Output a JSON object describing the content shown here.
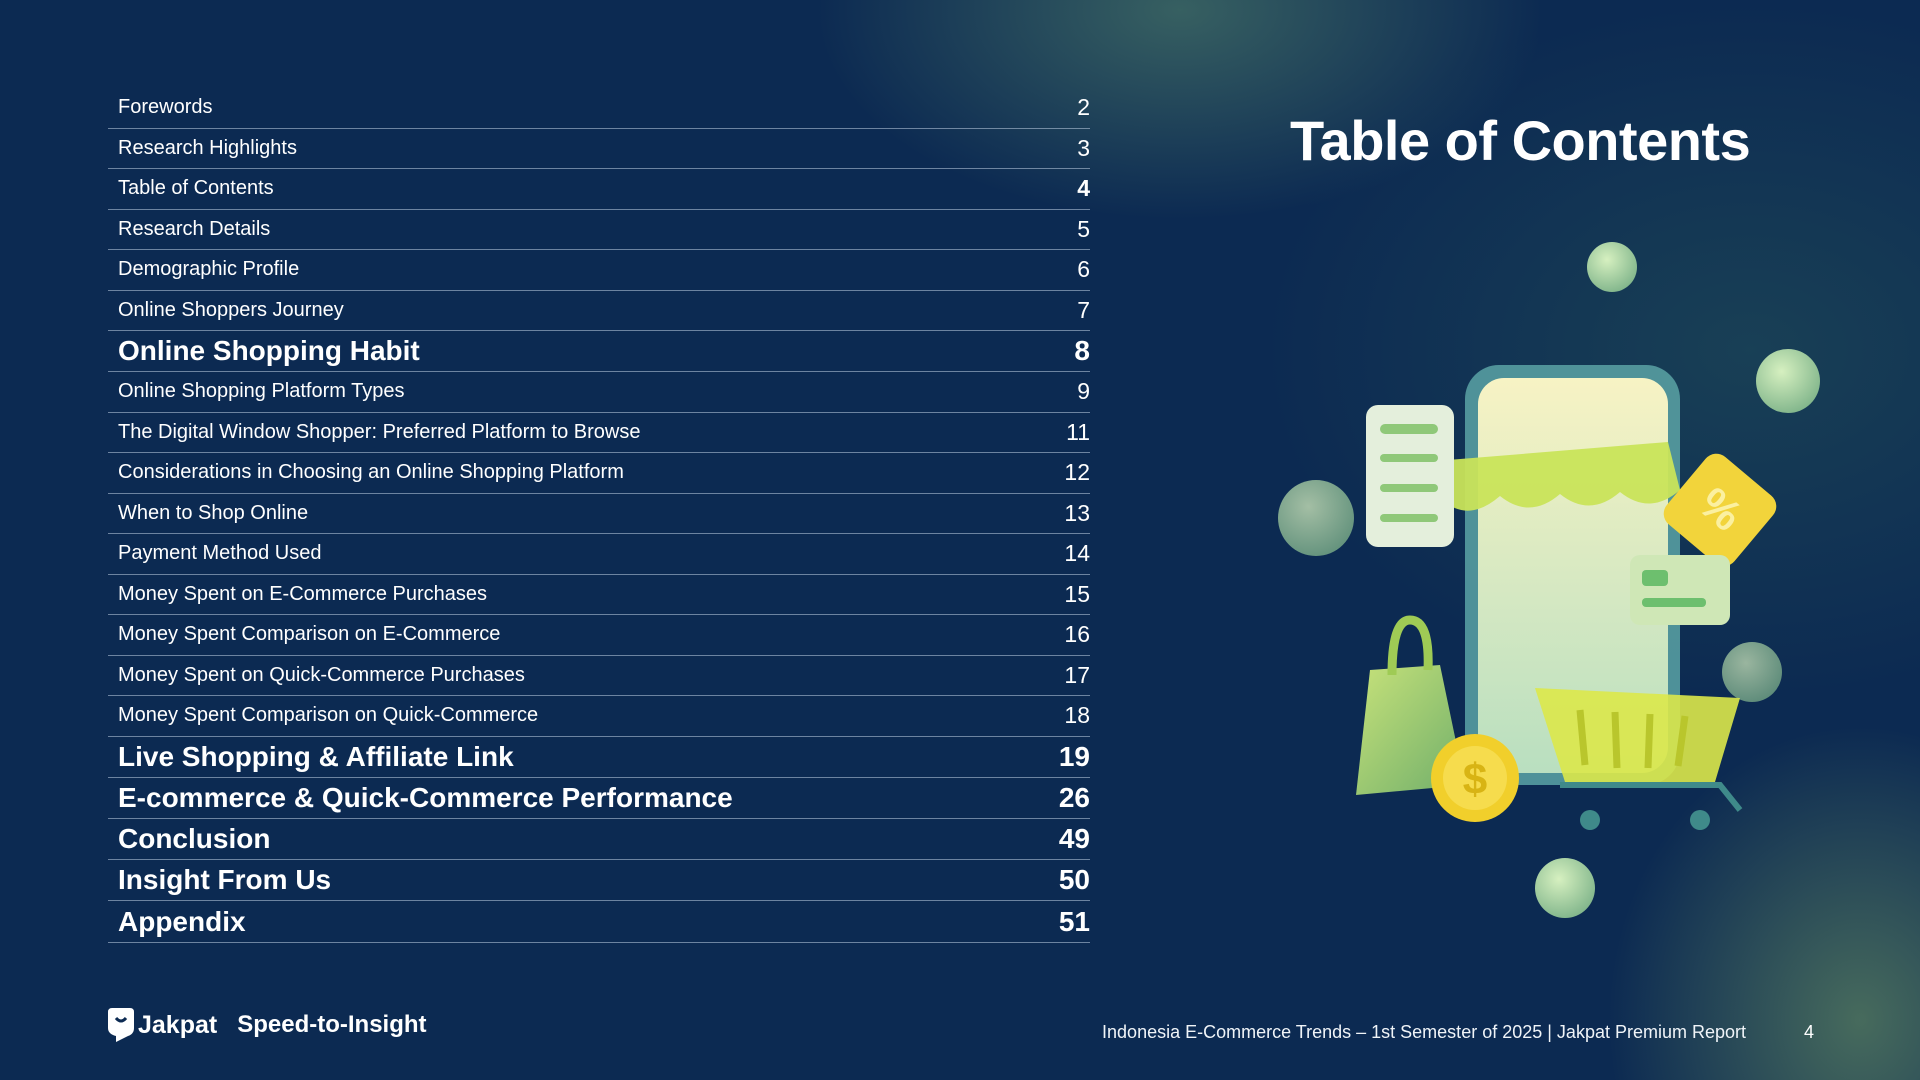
{
  "title": "Table of Contents",
  "toc": [
    {
      "label": "Forewords",
      "page": "2",
      "style": "sub"
    },
    {
      "label": "Research Highlights",
      "page": "3",
      "style": "sub"
    },
    {
      "label": "Table of Contents",
      "page": "4",
      "style": "sub",
      "current": true
    },
    {
      "label": "Research Details",
      "page": "5",
      "style": "sub"
    },
    {
      "label": "Demographic Profile",
      "page": "6",
      "style": "sub"
    },
    {
      "label": "Online Shoppers Journey",
      "page": "7",
      "style": "sub"
    },
    {
      "label": "Online Shopping Habit",
      "page": "8",
      "style": "bold"
    },
    {
      "label": "Online Shopping Platform Types",
      "page": "9",
      "style": "sub"
    },
    {
      "label": "The Digital Window Shopper: Preferred Platform to Browse",
      "page": "11",
      "style": "sub"
    },
    {
      "label": "Considerations in Choosing an Online Shopping Platform",
      "page": "12",
      "style": "sub"
    },
    {
      "label": "When to Shop Online",
      "page": "13",
      "style": "sub"
    },
    {
      "label": "Payment Method Used",
      "page": "14",
      "style": "sub"
    },
    {
      "label": "Money Spent on E-Commerce Purchases",
      "page": "15",
      "style": "sub"
    },
    {
      "label": "Money Spent Comparison on E-Commerce",
      "page": "16",
      "style": "sub"
    },
    {
      "label": "Money Spent on Quick-Commerce Purchases",
      "page": "17",
      "style": "sub"
    },
    {
      "label": "Money Spent Comparison on Quick-Commerce",
      "page": "18",
      "style": "sub"
    },
    {
      "label": "Live Shopping & Affiliate Link",
      "page": "19",
      "style": "bold"
    },
    {
      "label": "E-commerce & Quick-Commerce Performance",
      "page": "26",
      "style": "bold"
    },
    {
      "label": "Conclusion",
      "page": "49",
      "style": "bold"
    },
    {
      "label": "Insight From Us",
      "page": "50",
      "style": "bold"
    },
    {
      "label": "Appendix",
      "page": "51",
      "style": "bold"
    }
  ],
  "footer": {
    "brand": "Jakpat",
    "tagline": "Speed-to-Insight",
    "report": "Indonesia E-Commerce Trends – 1st Semester of 2025 | Jakpat Premium Report",
    "page": "4"
  },
  "illustration": {
    "icon": "online-shop-illustration",
    "discount_label": "%",
    "coin_label": "$"
  },
  "colors": {
    "background": "#0c2a52",
    "accent_green": "#9fd36a",
    "accent_yellow": "#f2d43b"
  }
}
